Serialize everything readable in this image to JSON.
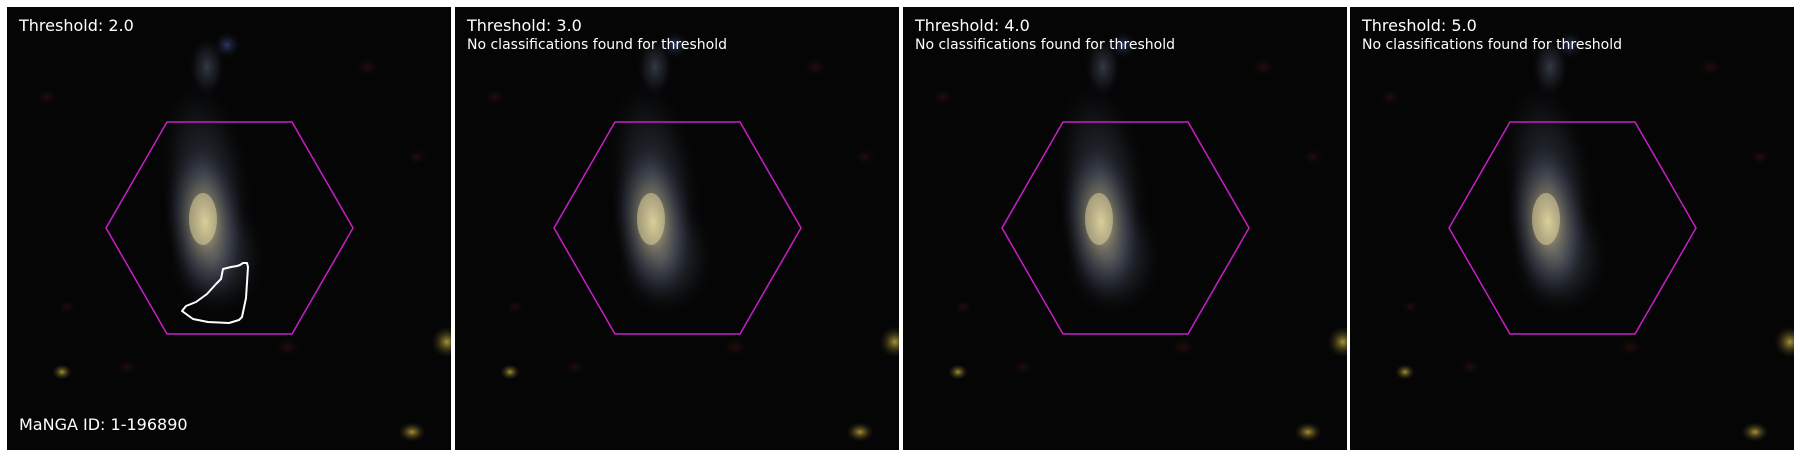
{
  "panels": [
    {
      "title": "Threshold: 2.0",
      "note": "",
      "has_region": true
    },
    {
      "title": "Threshold: 3.0",
      "note": "No classifications found for threshold",
      "has_region": false
    },
    {
      "title": "Threshold: 4.0",
      "note": "No classifications found for threshold",
      "has_region": false
    },
    {
      "title": "Threshold: 5.0",
      "note": "No classifications found for threshold",
      "has_region": false
    }
  ],
  "manga_id_label": "MaNGA ID: 1-196890",
  "colors": {
    "hexagon": "#c81ec8",
    "region_outline": "#ffffff",
    "background": "#050505",
    "text": "#ffffff"
  }
}
